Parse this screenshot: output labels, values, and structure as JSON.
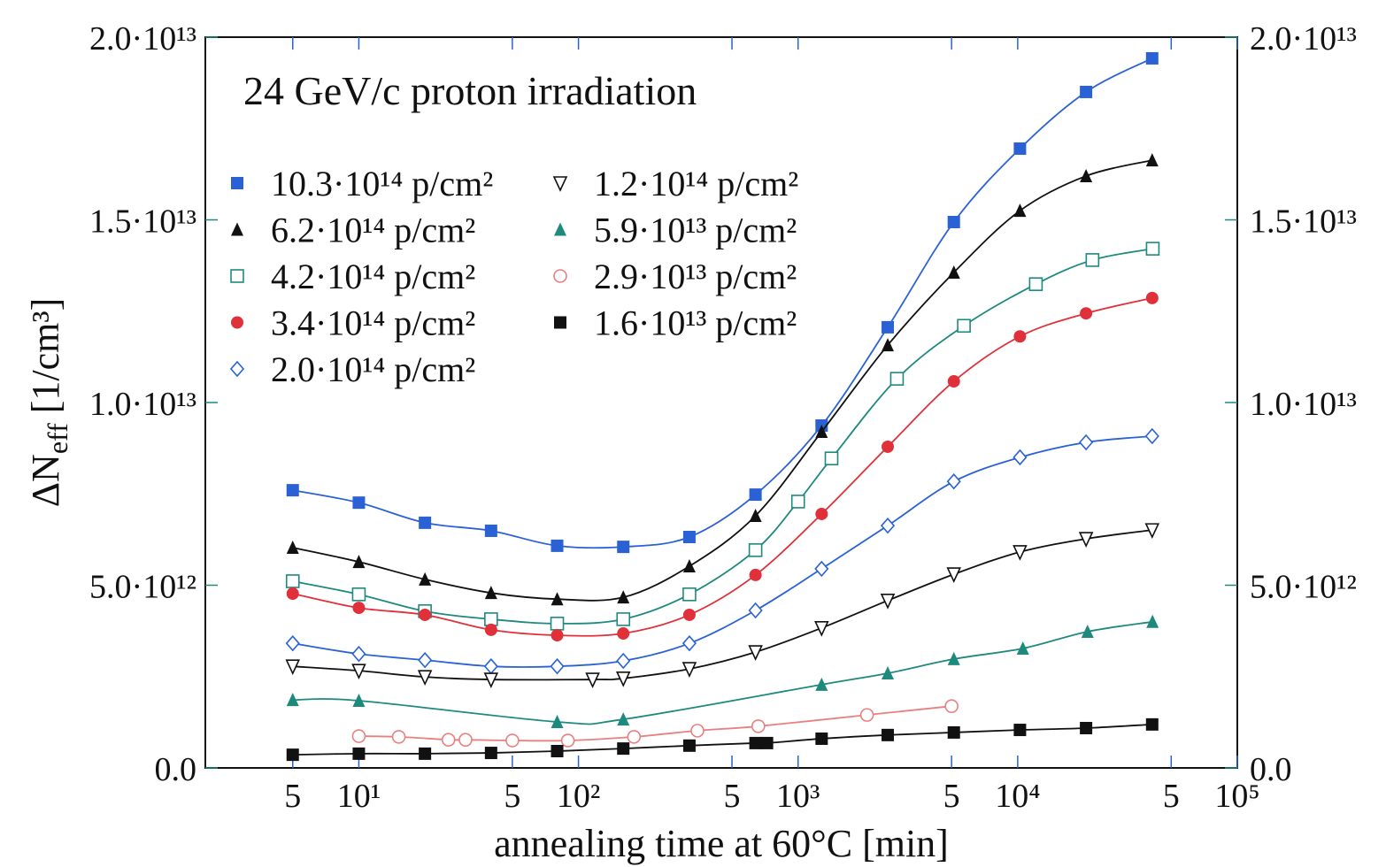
{
  "chart_data": {
    "type": "scatter",
    "title": "24 GeV/c proton irradiation",
    "x_label": "annealing time at 60°C [min]",
    "y_label": [
      "ΔN",
      "eff",
      " [1/cm³]"
    ],
    "log_x": true,
    "xlim": [
      2,
      100000
    ],
    "xticks": [
      5,
      {
        "value": 10,
        "label": "10¹"
      },
      {
        "value": 50,
        "label": "5"
      },
      {
        "value": 100,
        "label": "10²"
      },
      {
        "value": 500,
        "label": "5"
      },
      {
        "value": 1000,
        "label": "10³"
      },
      {
        "value": 5000,
        "label": "5"
      },
      {
        "value": 10000,
        "label": "10⁴"
      },
      {
        "value": 50000,
        "label": "5"
      },
      {
        "value": 100000,
        "label": "10⁵"
      }
    ],
    "ylim": [
      0,
      20000000000000.0
    ],
    "yticks": [
      {
        "value": 0,
        "label": "0.0"
      },
      {
        "value": 5000000000000.0,
        "label": "5.0·10¹²"
      },
      {
        "value": 10000000000000.0,
        "label": "1.0·10¹³"
      },
      {
        "value": 15000000000000.0,
        "label": "1.5·10¹³"
      },
      {
        "value": 20000000000000.0,
        "label": "2.0·10¹³"
      }
    ],
    "y2lim": [
      0,
      20000000000000.0
    ],
    "y2ticks": [
      {
        "value": 0,
        "label": "0.0"
      },
      {
        "value": 5000000000000.0,
        "label": "5.0·10¹²"
      },
      {
        "value": 10000000000000.0,
        "label": "1.0·10¹³"
      },
      {
        "value": 15000000000000.0,
        "label": "1.5·10¹³"
      },
      {
        "value": 20000000000000.0,
        "label": "2.0·10¹³"
      }
    ],
    "series": [
      {
        "name": "10.3·10¹⁴ p/cm²",
        "color": "#2a62d6",
        "marker": "square",
        "x": [
          5,
          10,
          20,
          40,
          80,
          160,
          320,
          640,
          1280,
          2560,
          5120,
          10240,
          20480,
          40960
        ],
        "values": [
          7600000000000.0,
          7260000000000.0,
          6710000000000.0,
          6490000000000.0,
          6080000000000.0,
          6050000000000.0,
          6320000000000.0,
          7480000000000.0,
          9370000000000.0,
          12060000000000.0,
          14940000000000.0,
          16950000000000.0,
          18500000000000.0,
          19420000000000.0
        ]
      },
      {
        "name": "6.2·10¹⁴ p/cm²",
        "color": "#111111",
        "marker": "triangle",
        "x": [
          5,
          10,
          20,
          40,
          80,
          160,
          320,
          640,
          1280,
          2560,
          5120,
          10240,
          20480,
          40960
        ],
        "values": [
          6030000000000.0,
          5640000000000.0,
          5160000000000.0,
          4790000000000.0,
          4620000000000.0,
          4670000000000.0,
          5520000000000.0,
          6900000000000.0,
          9200000000000.0,
          11570000000000.0,
          13560000000000.0,
          15250000000000.0,
          16200000000000.0,
          16630000000000.0
        ]
      },
      {
        "name": "4.2·10¹⁴ p/cm²",
        "color": "#1e8a7e",
        "marker": "open-square",
        "x": [
          5,
          10,
          20,
          40,
          80,
          160,
          320,
          640,
          1000,
          1420,
          2820,
          5690,
          12100,
          21900,
          41200
        ],
        "values": [
          5110000000000.0,
          4750000000000.0,
          4290000000000.0,
          4070000000000.0,
          3950000000000.0,
          4070000000000.0,
          4750000000000.0,
          5960000000000.0,
          7290000000000.0,
          8470000000000.0,
          10650000000000.0,
          12100000000000.0,
          13240000000000.0,
          13900000000000.0,
          14210000000000.0
        ]
      },
      {
        "name": "3.4·10¹⁴ p/cm²",
        "color": "#e0303a",
        "marker": "circle",
        "x": [
          5,
          10,
          20,
          40,
          80,
          160,
          320,
          640,
          1280,
          2560,
          5120,
          10240,
          20480,
          40960
        ],
        "values": [
          4770000000000.0,
          4380000000000.0,
          4190000000000.0,
          3780000000000.0,
          3630000000000.0,
          3680000000000.0,
          4190000000000.0,
          5280000000000.0,
          6950000000000.0,
          8790000000000.0,
          10580000000000.0,
          11810000000000.0,
          12440000000000.0,
          12860000000000.0
        ]
      },
      {
        "name": "2.0·10¹⁴ p/cm²",
        "color": "#2a62d6",
        "marker": "open-diamond",
        "x": [
          5,
          10,
          20,
          40,
          80,
          160,
          320,
          640,
          1280,
          2560,
          5120,
          10240,
          20480,
          40960
        ],
        "values": [
          3410000000000.0,
          3120000000000.0,
          2950000000000.0,
          2780000000000.0,
          2780000000000.0,
          2930000000000.0,
          3410000000000.0,
          4310000000000.0,
          5450000000000.0,
          6630000000000.0,
          7840000000000.0,
          8500000000000.0,
          8910000000000.0,
          9080000000000.0
        ]
      },
      {
        "name": "1.2·10¹⁴ p/cm²",
        "color": "#111111",
        "marker": "open-triangle-down",
        "x": [
          5,
          10,
          20,
          40,
          116,
          160,
          320,
          640,
          1280,
          2560,
          5120,
          10240,
          20480,
          40960
        ],
        "values": [
          2780000000000.0,
          2660000000000.0,
          2490000000000.0,
          2420000000000.0,
          2420000000000.0,
          2450000000000.0,
          2710000000000.0,
          3170000000000.0,
          3830000000000.0,
          4580000000000.0,
          5300000000000.0,
          5910000000000.0,
          6270000000000.0,
          6510000000000.0
        ]
      },
      {
        "name": "5.9·10¹³ p/cm²",
        "color": "#1e8a7e",
        "marker": "triangle",
        "x": [
          5,
          10,
          80,
          160,
          1280,
          2560,
          5120,
          10560,
          20800,
          41100
        ],
        "values": [
          1860000000000.0,
          1840000000000.0,
          1260000000000.0,
          1330000000000.0,
          2280000000000.0,
          2590000000000.0,
          2980000000000.0,
          3270000000000.0,
          3730000000000.0,
          4000000000000.0
        ]
      },
      {
        "name": "2.9·10¹³ p/cm²",
        "color": "#e88080",
        "marker": "open-circle",
        "x": [
          10,
          15.2,
          25.6,
          30.6,
          50,
          89.5,
          179,
          348,
          659,
          2060,
          5000
        ],
        "values": [
          870000000000.0,
          850000000000.0,
          770000000000.0,
          770000000000.0,
          750000000000.0,
          750000000000.0,
          850000000000.0,
          1020000000000.0,
          1140000000000.0,
          1450000000000.0,
          1690000000000.0
        ]
      },
      {
        "name": "1.6·10¹³ p/cm²",
        "color": "#111111",
        "marker": "square",
        "x": [
          5,
          10,
          20,
          40,
          80,
          160,
          320,
          640,
          722,
          1280,
          2560,
          5120,
          10240,
          20480,
          40960
        ],
        "values": [
          360000000000.0,
          390000000000.0,
          390000000000.0,
          410000000000.0,
          460000000000.0,
          530000000000.0,
          610000000000.0,
          680000000000.0,
          680000000000.0,
          800000000000.0,
          900000000000.0,
          970000000000.0,
          1040000000000.0,
          1090000000000.0,
          1190000000000.0
        ]
      }
    ]
  }
}
